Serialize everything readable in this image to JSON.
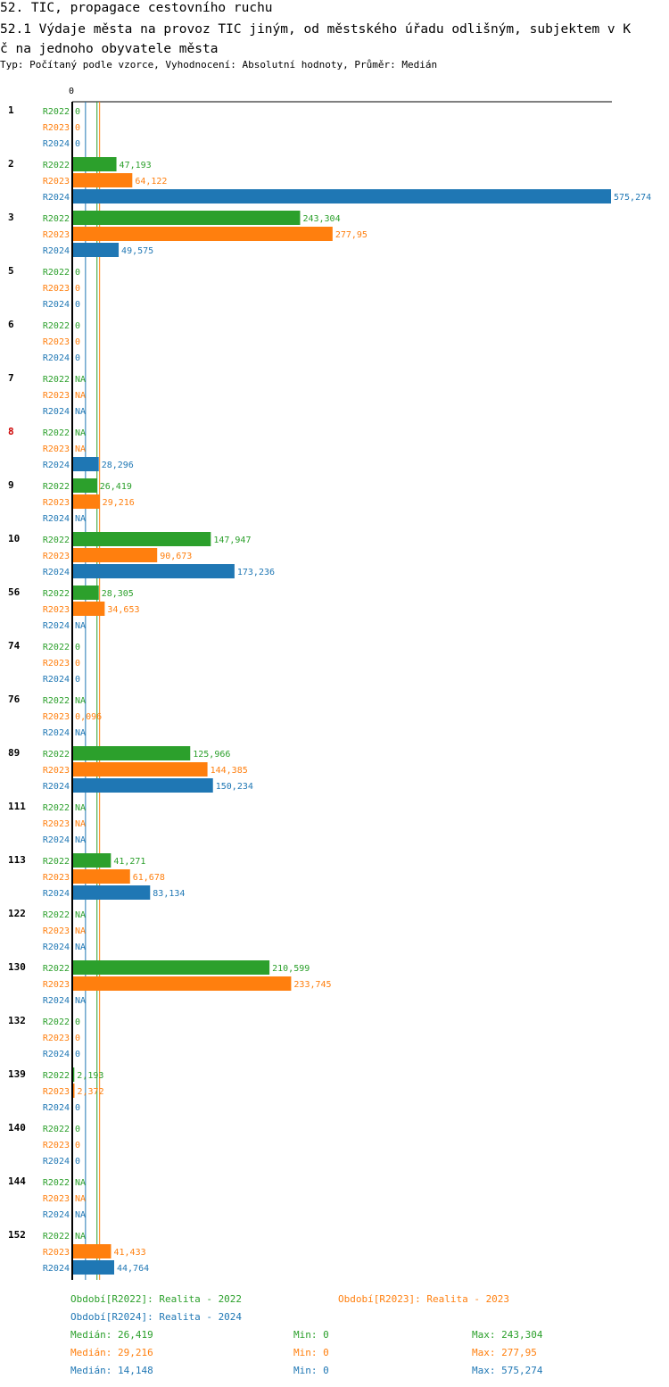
{
  "title": "52. TIC, propagace cestovního ruchu",
  "subtitle_line1": "52.1 Výdaje města na provoz TIC jiným, od městského úřadu odlišným, subjektem v K",
  "subtitle_line2": "č na jednoho obyvatele města",
  "meta": "Typ: Počítaný podle vzorce, Vyhodnocení: Absolutní hodnoty, Průměr: Medián",
  "colors": {
    "R2022": "#2ca02c",
    "R2023": "#ff7f0e",
    "R2024": "#1f77b4",
    "highlight": "#cc0000"
  },
  "chart_data": {
    "type": "bar",
    "orientation": "horizontal",
    "axis_zero_label": "0",
    "xlim": [
      0,
      575.274
    ],
    "series_names": [
      "R2022",
      "R2023",
      "R2024"
    ],
    "groups": [
      {
        "label": "1",
        "highlight": false,
        "values": [
          0,
          0,
          0
        ],
        "labels": [
          "0",
          "0",
          "0"
        ]
      },
      {
        "label": "2",
        "highlight": false,
        "values": [
          47.193,
          64.122,
          575.274
        ],
        "labels": [
          "47,193",
          "64,122",
          "575,274"
        ]
      },
      {
        "label": "3",
        "highlight": false,
        "values": [
          243.304,
          277.95,
          49.575
        ],
        "labels": [
          "243,304",
          "277,95",
          "49,575"
        ]
      },
      {
        "label": "5",
        "highlight": false,
        "values": [
          0,
          0,
          0
        ],
        "labels": [
          "0",
          "0",
          "0"
        ]
      },
      {
        "label": "6",
        "highlight": false,
        "values": [
          0,
          0,
          0
        ],
        "labels": [
          "0",
          "0",
          "0"
        ]
      },
      {
        "label": "7",
        "highlight": false,
        "values": [
          null,
          null,
          null
        ],
        "labels": [
          "NA",
          "NA",
          "NA"
        ]
      },
      {
        "label": "8",
        "highlight": true,
        "values": [
          null,
          null,
          28.296
        ],
        "labels": [
          "NA",
          "NA",
          "28,296"
        ]
      },
      {
        "label": "9",
        "highlight": false,
        "values": [
          26.419,
          29.216,
          null
        ],
        "labels": [
          "26,419",
          "29,216",
          "NA"
        ]
      },
      {
        "label": "10",
        "highlight": false,
        "values": [
          147.947,
          90.673,
          173.236
        ],
        "labels": [
          "147,947",
          "90,673",
          "173,236"
        ]
      },
      {
        "label": "56",
        "highlight": false,
        "values": [
          28.305,
          34.653,
          null
        ],
        "labels": [
          "28,305",
          "34,653",
          "NA"
        ]
      },
      {
        "label": "74",
        "highlight": false,
        "values": [
          0,
          0,
          0
        ],
        "labels": [
          "0",
          "0",
          "0"
        ]
      },
      {
        "label": "76",
        "highlight": false,
        "values": [
          null,
          0.096,
          null
        ],
        "labels": [
          "NA",
          "0,096",
          "NA"
        ]
      },
      {
        "label": "89",
        "highlight": false,
        "values": [
          125.966,
          144.385,
          150.234
        ],
        "labels": [
          "125,966",
          "144,385",
          "150,234"
        ]
      },
      {
        "label": "111",
        "highlight": false,
        "values": [
          null,
          null,
          null
        ],
        "labels": [
          "NA",
          "NA",
          "NA"
        ]
      },
      {
        "label": "113",
        "highlight": false,
        "values": [
          41.271,
          61.678,
          83.134
        ],
        "labels": [
          "41,271",
          "61,678",
          "83,134"
        ]
      },
      {
        "label": "122",
        "highlight": false,
        "values": [
          null,
          null,
          null
        ],
        "labels": [
          "NA",
          "NA",
          "NA"
        ]
      },
      {
        "label": "130",
        "highlight": false,
        "values": [
          210.599,
          233.745,
          null
        ],
        "labels": [
          "210,599",
          "233,745",
          "NA"
        ]
      },
      {
        "label": "132",
        "highlight": false,
        "values": [
          0,
          0,
          0
        ],
        "labels": [
          "0",
          "0",
          "0"
        ]
      },
      {
        "label": "139",
        "highlight": false,
        "values": [
          2.193,
          2.372,
          0
        ],
        "labels": [
          "2,193",
          "2,372",
          "0"
        ]
      },
      {
        "label": "140",
        "highlight": false,
        "values": [
          0,
          0,
          0
        ],
        "labels": [
          "0",
          "0",
          "0"
        ]
      },
      {
        "label": "144",
        "highlight": false,
        "values": [
          null,
          null,
          null
        ],
        "labels": [
          "NA",
          "NA",
          "NA"
        ]
      },
      {
        "label": "152",
        "highlight": false,
        "values": [
          null,
          41.433,
          44.764
        ],
        "labels": [
          "NA",
          "41,433",
          "44,764"
        ]
      }
    ],
    "medians": [
      26.419,
      29.216,
      14.148
    ]
  },
  "legend": {
    "period_2022": "Období[R2022]: Realita - 2022",
    "period_2023": "Období[R2023]: Realita - 2023",
    "period_2024": "Období[R2024]: Realita - 2024",
    "stats": [
      {
        "median": "Medián: 26,419",
        "min": "Min: 0",
        "max": "Max: 243,304"
      },
      {
        "median": "Medián: 29,216",
        "min": "Min: 0",
        "max": "Max: 277,95"
      },
      {
        "median": "Medián: 14,148",
        "min": "Min: 0",
        "max": "Max: 575,274"
      }
    ]
  }
}
